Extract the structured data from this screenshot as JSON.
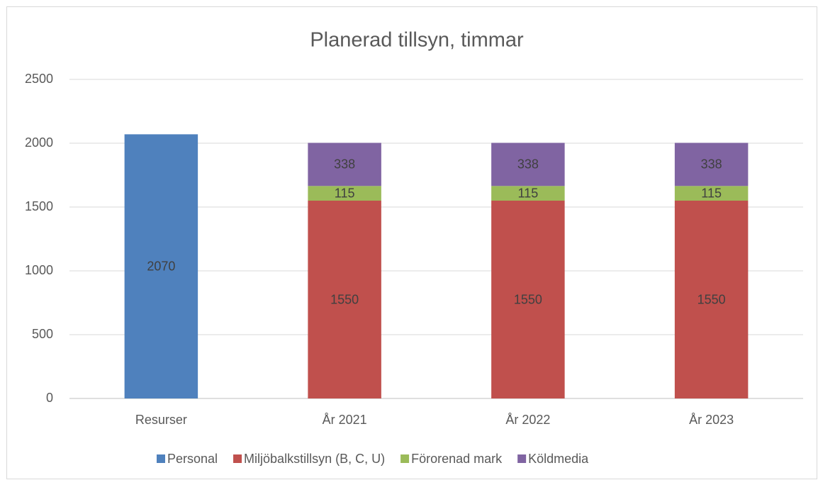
{
  "chart_data": {
    "type": "bar",
    "stacked": true,
    "title": "Planerad tillsyn, timmar",
    "categories": [
      "Resurser",
      "År 2021",
      "År 2022",
      "År 2023"
    ],
    "series": [
      {
        "name": "Personal",
        "color": "#4f81bd",
        "values": [
          2070,
          null,
          null,
          null
        ]
      },
      {
        "name": "Miljöbalkstillsyn (B, C, U)",
        "color": "#c0504d",
        "values": [
          null,
          1550,
          1550,
          1550
        ]
      },
      {
        "name": "Förorenad mark",
        "color": "#9bbb59",
        "values": [
          null,
          115,
          115,
          115
        ]
      },
      {
        "name": "Köldmedia",
        "color": "#8064a2",
        "values": [
          null,
          338,
          338,
          338
        ]
      }
    ],
    "ylim": [
      0,
      2500
    ],
    "yticks": [
      0,
      500,
      1000,
      1500,
      2000,
      2500
    ],
    "grid": true,
    "legend": "bottom"
  }
}
